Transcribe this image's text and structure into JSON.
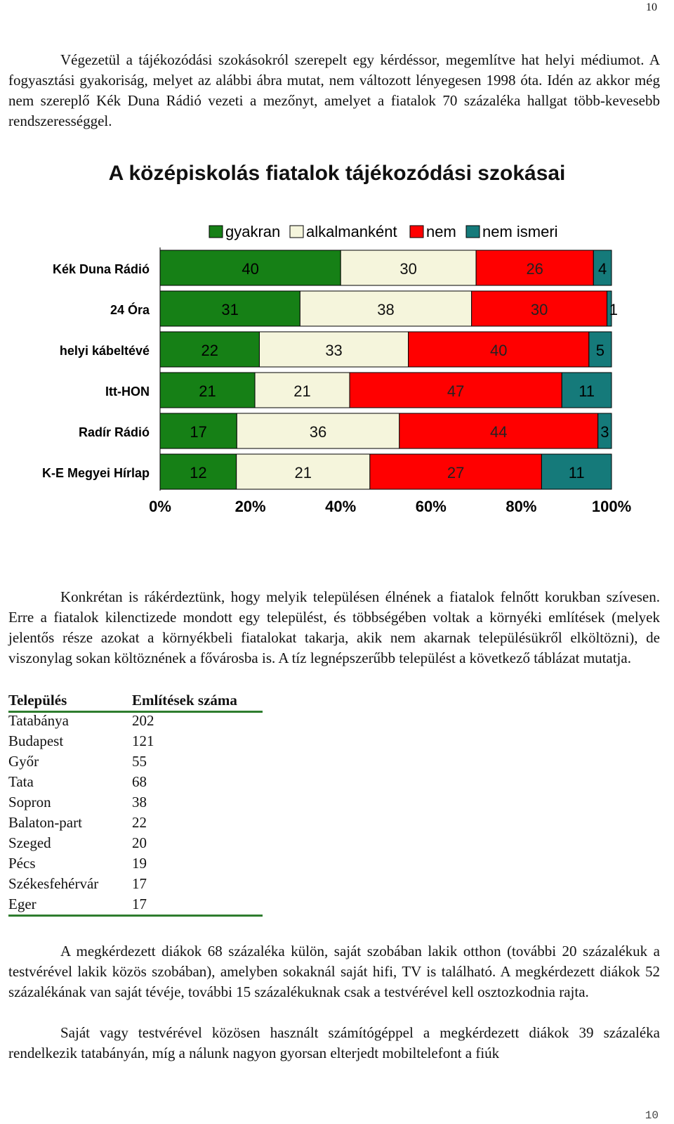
{
  "page": {
    "number_top": "10",
    "number_bottom": "10"
  },
  "paragraphs": {
    "p1": "Végezetül a tájékozódási szokásokról szerepelt egy kérdéssor, megemlítve hat helyi médiumot. A fogyasztási gyakoriság, melyet az alábbi ábra mutat, nem változott lényegesen 1998 óta. Idén az akkor még nem szereplő Kék Duna Rádió vezeti a mezőnyt, amelyet a fiatalok 70 százaléka hallgat több-kevesebb rendszerességgel.",
    "p2": "Konkrétan is rákérdeztünk, hogy melyik településen élnének a fiatalok felnőtt korukban szívesen. Erre a fiatalok kilenctizede mondott egy települést, és többségében voltak a környéki említések (melyek jelentős része azokat a környékbeli fiatalokat takarja, akik nem akarnak településükről elköltözni), de viszonylag sokan költöznének a fővárosba is. A tíz legnépszerűbb települést a következő táblázat mutatja.",
    "p3": "A megkérdezett diákok 68 százaléka külön, saját szobában lakik otthon (további 20 százalékuk a testvérével lakik közös szobában), amelyben sokaknál saját hifi, TV is található. A megkérdezett diákok 52 százalékának van saját tévéje, további 15 százalékuknak csak a testvérével kell osztozkodnia rajta.",
    "p4": "Saját vagy testvérével közösen használt számítógéppel a megkérdezett diákok 39 százaléka rendelkezik tatabányán, míg a nálunk nagyon gyorsan elterjedt mobiltelefont a fiúk"
  },
  "chart_data": {
    "type": "bar",
    "orientation": "horizontal",
    "stacked": "percent",
    "title": "A középiskolás fiatalok tájékozódási szokásai",
    "categories": [
      "Kék Duna Rádió",
      "24 Óra",
      "helyi kábeltévé",
      "Itt-HON",
      "Radír Rádió",
      "K-E Megyei Hírlap"
    ],
    "series": [
      {
        "name": "gyakran",
        "color": "#168016",
        "values": [
          40,
          31,
          22,
          21,
          17,
          12
        ]
      },
      {
        "name": "alkalmanként",
        "color": "#f5f5dc",
        "values": [
          30,
          38,
          33,
          21,
          36,
          21
        ]
      },
      {
        "name": "nem",
        "color": "#ff0000",
        "values": [
          26,
          30,
          40,
          47,
          44,
          27
        ]
      },
      {
        "name": "nem ismeri",
        "color": "#157a7a",
        "values": [
          4,
          1,
          5,
          11,
          3,
          11
        ]
      }
    ],
    "x_ticks": [
      "0%",
      "20%",
      "40%",
      "60%",
      "80%",
      "100%"
    ],
    "xlim": [
      0,
      100
    ],
    "legend_position": "top",
    "grid": false
  },
  "table": {
    "headers": [
      "Település",
      "Említések száma"
    ],
    "rows": [
      [
        "Tatabánya",
        "202"
      ],
      [
        "Budapest",
        "121"
      ],
      [
        "Győr",
        "55"
      ],
      [
        "Tata",
        "68"
      ],
      [
        "Sopron",
        "38"
      ],
      [
        "Balaton-part",
        "22"
      ],
      [
        "Szeged",
        "20"
      ],
      [
        "Pécs",
        "19"
      ],
      [
        "Székesfehérvár",
        "17"
      ],
      [
        "Eger",
        "17"
      ]
    ]
  }
}
